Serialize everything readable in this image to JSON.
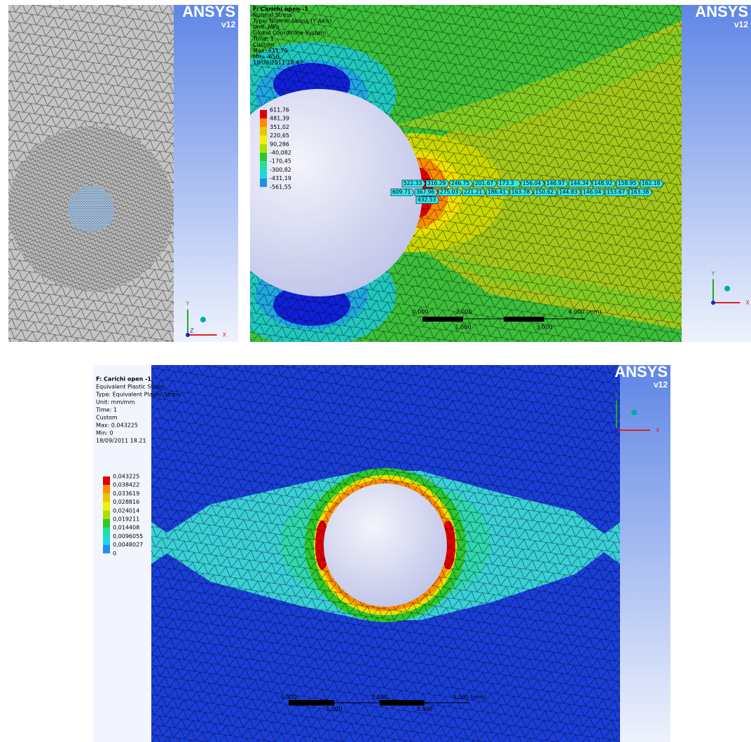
{
  "panels": [
    {
      "logo": {
        "brand": "ANSYS",
        "version": "v12"
      },
      "axes": {
        "x": "X",
        "y": "Y",
        "z": "Z"
      }
    },
    {
      "logo": {
        "brand": "ANSYS",
        "version": "v12"
      },
      "axes": {
        "x": "X",
        "y": "Y"
      },
      "info": [
        "F: Carichi open -1",
        "Normal Stress",
        "Type: Normal Stress (Y Axis)",
        "Unit: MPa",
        "Global Coordinate System",
        "Time: 1",
        "Custom",
        "Max: 611,76",
        "Min: -656,",
        "18/09/2011 18.42"
      ],
      "legend": {
        "labels": [
          "611,76",
          "481,39",
          "351,02",
          "220,65",
          "90,286",
          "-40,082",
          "-170,45",
          "-300,82",
          "-431,19",
          "-561,55"
        ],
        "colors": [
          "#e00000",
          "#ff8c00",
          "#e6c800",
          "#f0f000",
          "#a8e000",
          "#2ec82e",
          "#20e0a0",
          "#20d8e0",
          "#2090e8",
          "#1020d8"
        ]
      },
      "probes": {
        "rows": [
          [
            "522.33",
            "316.29",
            "246.75",
            "201.67",
            "173.3",
            "156.04",
            "146.97",
            "144.34",
            "148.92",
            "158.95",
            "162.18"
          ],
          [
            "609.71",
            "367.96",
            "275.03",
            "221.21",
            "186.41",
            "163.78",
            "150.62",
            "144.83",
            "146.04",
            "153.67",
            "163.38"
          ],
          [
            "432.53"
          ]
        ]
      },
      "scale": {
        "top": [
          "0,000",
          "2,000",
          "4,000 (mm)"
        ],
        "bottom": [
          "1,000",
          "3,000"
        ]
      }
    },
    {
      "logo": {
        "brand": "ANSYS",
        "version": "v12"
      },
      "axes": {
        "x": "X",
        "y": "Y"
      },
      "info": [
        "F: Carichi open -1",
        "Equivalent Plastic Strain",
        "Type: Equivalent Plastic Strain",
        "Unit: mm/mm",
        "Time: 1",
        "Custom",
        "Max: 0,043225",
        "Min: 0",
        "18/09/2011 18.21"
      ],
      "legend": {
        "labels": [
          "0,043225",
          "0,038422",
          "0,033619",
          "0,028816",
          "0,024014",
          "0,019211",
          "0,014408",
          "0,0096055",
          "0,0048027",
          "0"
        ],
        "colors": [
          "#e00000",
          "#ff8c00",
          "#e6c800",
          "#f0f000",
          "#a8e000",
          "#2ec82e",
          "#20e0a0",
          "#20d8e0",
          "#2090e8",
          "#1020d8"
        ]
      },
      "scale": {
        "top": [
          "0,000",
          "2,000",
          "4,000 (mm)"
        ],
        "bottom": [
          "1,000",
          "3,000"
        ]
      }
    }
  ]
}
